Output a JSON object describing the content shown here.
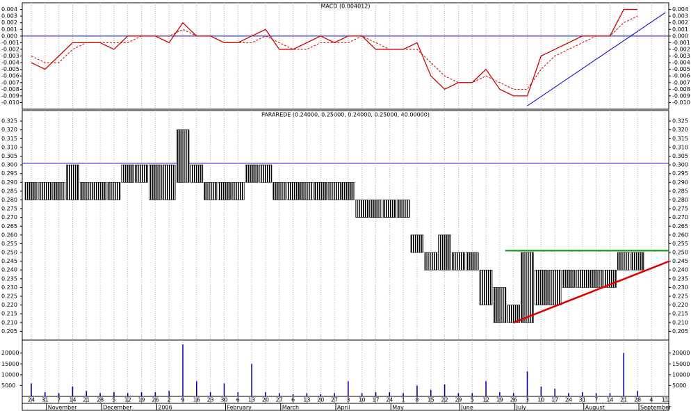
{
  "chart_data": [
    {
      "type": "line",
      "title": "MACD (0.004012)",
      "series": [
        {
          "color": "#d00000",
          "dash": false,
          "values": [
            -0.004,
            -0.005,
            -0.003,
            -0.001,
            -0.001,
            -0.001,
            -0.002,
            0,
            0,
            0,
            -0.001,
            0.002,
            0,
            0,
            -0.001,
            -0.001,
            0,
            0.001,
            -0.002,
            -0.002,
            -0.001,
            0,
            -0.001,
            0,
            0,
            -0.002,
            -0.002,
            -0.002,
            -0.001,
            -0.006,
            -0.008,
            -0.007,
            -0.007,
            -0.005,
            -0.008,
            -0.009,
            -0.009,
            -0.003,
            -0.002,
            -0.001,
            0,
            0,
            0,
            0.004,
            0.004,
            null,
            null
          ]
        },
        {
          "color": "#d00000",
          "dash": true,
          "values": [
            -0.003,
            -0.004,
            -0.004,
            -0.002,
            -0.001,
            -0.001,
            -0.001,
            -0.001,
            0,
            0,
            0,
            0.001,
            0,
            0,
            -0.001,
            -0.001,
            -0.001,
            0,
            -0.001,
            -0.002,
            -0.002,
            -0.001,
            -0.001,
            -0.001,
            0,
            -0.001,
            -0.002,
            -0.002,
            -0.002,
            -0.004,
            -0.006,
            -0.007,
            -0.007,
            -0.006,
            -0.007,
            -0.008,
            -0.008,
            -0.005,
            -0.003,
            -0.002,
            -0.001,
            0,
            0,
            0.002,
            0.003,
            null,
            null
          ]
        }
      ],
      "ylim": [
        -0.011,
        0.005
      ],
      "yticks": [
        0.004,
        0.003,
        0.002,
        0.001,
        {
          "value": 0,
          "label": "0.000"
        },
        -0.001,
        -0.002,
        -0.003,
        -0.004,
        -0.005,
        -0.006,
        -0.007,
        -0.008,
        -0.009,
        {
          "value": -0.01,
          "label": "-0.010"
        }
      ],
      "hlines": [
        {
          "value": 0,
          "color": "#0000cc"
        }
      ],
      "trendlines": [
        {
          "x": [
            36,
            46
          ],
          "y": [
            -0.0105,
            0.0035
          ],
          "color": "#0000cc",
          "width": 1
        }
      ],
      "grid": "vertical"
    },
    {
      "type": "range",
      "title": "PARAREDE (0.24000, 0.25000, 0.24000, 0.25000, 40.00000)",
      "color": "#000000",
      "low": [
        0.28,
        0.28,
        0.28,
        0.28,
        0.28,
        0.28,
        0.28,
        0.29,
        0.29,
        0.28,
        0.28,
        0.29,
        0.29,
        0.28,
        0.28,
        0.28,
        0.29,
        0.29,
        0.28,
        0.28,
        0.28,
        0.28,
        0.28,
        0.28,
        0.27,
        0.27,
        0.27,
        0.27,
        0.25,
        0.24,
        0.24,
        0.24,
        0.24,
        0.22,
        0.21,
        0.21,
        0.21,
        0.22,
        0.22,
        0.23,
        0.23,
        0.23,
        0.23,
        0.24,
        0.24,
        null,
        null
      ],
      "high": [
        0.29,
        0.29,
        0.29,
        0.3,
        0.29,
        0.29,
        0.29,
        0.3,
        0.3,
        0.3,
        0.3,
        0.32,
        0.3,
        0.29,
        0.29,
        0.29,
        0.3,
        0.3,
        0.29,
        0.29,
        0.29,
        0.29,
        0.29,
        0.29,
        0.28,
        0.28,
        0.28,
        0.28,
        0.26,
        0.25,
        0.26,
        0.25,
        0.25,
        0.24,
        0.23,
        0.22,
        0.25,
        0.24,
        0.24,
        0.24,
        0.24,
        0.24,
        0.24,
        0.25,
        0.25,
        null,
        null
      ],
      "ylim": [
        0.2,
        0.331
      ],
      "yticks": [
        0.325,
        {
          "value": 0.32,
          "label": "0.320"
        },
        0.315,
        {
          "value": 0.31,
          "label": "0.310"
        },
        0.305,
        {
          "value": 0.3,
          "label": "0.300"
        },
        0.295,
        {
          "value": 0.29,
          "label": "0.290"
        },
        0.285,
        {
          "value": 0.28,
          "label": "0.280"
        },
        0.275,
        {
          "value": 0.27,
          "label": "0.270"
        },
        0.265,
        {
          "value": 0.26,
          "label": "0.260"
        },
        0.255,
        {
          "value": 0.25,
          "label": "0.250"
        },
        0.245,
        {
          "value": 0.24,
          "label": "0.240"
        },
        0.235,
        {
          "value": 0.23,
          "label": "0.230"
        },
        0.225,
        {
          "value": 0.22,
          "label": "0.220"
        },
        0.215,
        {
          "value": 0.21,
          "label": "0.210"
        },
        0.205
      ],
      "hlines": [
        {
          "value": 0.301,
          "color": "#0000cc"
        }
      ],
      "trendlines": [
        {
          "x": [
            34.4,
            46.3
          ],
          "y": [
            0.251,
            0.251
          ],
          "color": "#009900",
          "width": 2
        },
        {
          "x": [
            35,
            46.3
          ],
          "y": [
            0.21,
            0.245
          ],
          "color": "#dd0000",
          "width": 2.5
        }
      ],
      "grid": "vertical"
    },
    {
      "type": "bar",
      "color": "#0000aa",
      "categories": [
        "24",
        "31",
        "7",
        "14",
        "21",
        "28",
        "5",
        "12",
        "19",
        "26",
        "2",
        "9",
        "16",
        "23",
        "30",
        "6",
        "13",
        "20",
        "27",
        "6",
        "13",
        "20",
        "27",
        "3",
        "10",
        "17",
        "24",
        "1",
        "8",
        "15",
        "22",
        "29",
        "5",
        "12",
        "19",
        "26",
        "3",
        "10",
        "17",
        "24",
        "31",
        "7",
        "14",
        "21",
        "28",
        "4",
        "11"
      ],
      "months": [
        {
          "label": "November",
          "index": 2
        },
        {
          "label": "December",
          "index": 6
        },
        {
          "label": "2006",
          "index": 10
        },
        {
          "label": "February",
          "index": 15
        },
        {
          "label": "March",
          "index": 19
        },
        {
          "label": "April",
          "index": 23
        },
        {
          "label": "May",
          "index": 27
        },
        {
          "label": "June",
          "index": 32
        },
        {
          "label": "July",
          "index": 36
        },
        {
          "label": "August",
          "index": 41
        },
        {
          "label": "September",
          "index": 45
        }
      ],
      "values": [
        6000,
        2000,
        1500,
        4500,
        2500,
        1500,
        2000,
        1500,
        2000,
        2000,
        2500,
        24000,
        7000,
        2000,
        6000,
        2000,
        15000,
        2000,
        1500,
        1000,
        1500,
        1000,
        1500,
        7000,
        1500,
        2000,
        2000,
        1500,
        5000,
        3000,
        5500,
        1500,
        1500,
        7000,
        2000,
        1500,
        11500,
        4500,
        3500,
        1500,
        2000,
        1500,
        1500,
        20000,
        2500,
        null,
        null
      ],
      "ylim": [
        0,
        26000
      ],
      "yticks": [
        20000,
        15000,
        10000,
        5000
      ],
      "grid": "vertical"
    }
  ]
}
